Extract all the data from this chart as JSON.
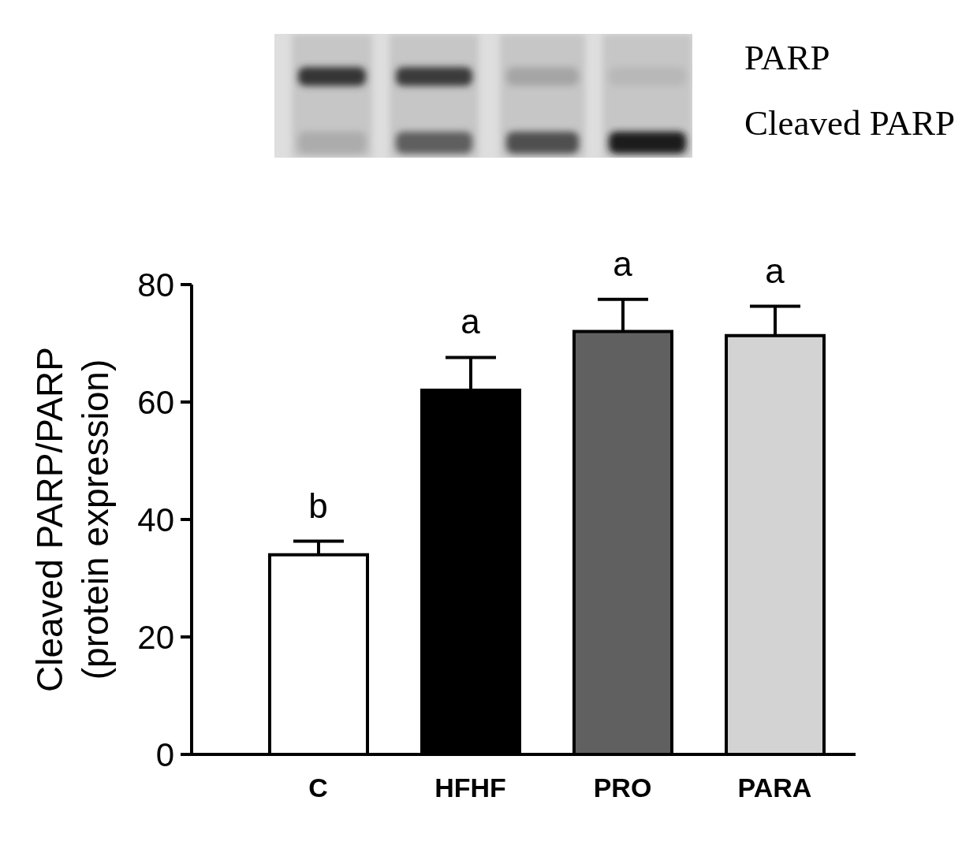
{
  "chart_data": {
    "type": "bar",
    "ylabel": "Cleaved PARP/PARP\n(protein expression)",
    "categories": [
      "C",
      "HFHF",
      "PRO",
      "PARA"
    ],
    "values": [
      34,
      62,
      72,
      71.3
    ],
    "colors": [
      "#ffffff",
      "#000000",
      "#606060",
      "#d3d3d3"
    ],
    "errors": [
      [
        34,
        36.3
      ],
      [
        62,
        67.6
      ],
      [
        72,
        77.5
      ],
      [
        71.3,
        76.3
      ]
    ],
    "ylim": [
      0,
      80
    ],
    "yticks": [
      0,
      20,
      40,
      60,
      80
    ],
    "annotations": [
      {
        "text": "b",
        "x": "C",
        "y": 36.3
      },
      {
        "text": "a",
        "x": "HFHF",
        "y": 67.6
      },
      {
        "text": "a",
        "x": "PRO",
        "y": 77.5
      },
      {
        "text": "a",
        "x": "PARA",
        "y": 76.3
      },
      "PARP",
      "Cleaved PARP"
    ]
  }
}
